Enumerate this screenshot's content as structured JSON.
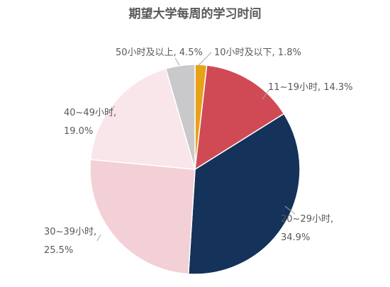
{
  "chart_data": {
    "type": "pie",
    "title": "期望大学每周的学习时间",
    "start_angle_deg": 0,
    "direction": "clockwise",
    "slices": [
      {
        "name": "10小时及以下",
        "value": 1.8,
        "label": "10小时及以下, 1.8%",
        "color": "#E8A217"
      },
      {
        "name": "11~19小时",
        "value": 14.3,
        "label": "11~19小时, 14.3%",
        "color": "#D04A55"
      },
      {
        "name": "20~29小时",
        "value": 34.9,
        "label": "20~29小时, 34.9%",
        "color": "#14325A"
      },
      {
        "name": "30~39小时",
        "value": 25.5,
        "label": "30~39小时, 25.5%",
        "color": "#F2D0D5"
      },
      {
        "name": "40~49小时",
        "value": 19.0,
        "label": "40~49小时, 19.0%",
        "color": "#F9E6EA"
      },
      {
        "name": "50小时及以上",
        "value": 4.5,
        "label": "50小时及以上, 4.5%",
        "color": "#C9C9CB"
      }
    ]
  }
}
